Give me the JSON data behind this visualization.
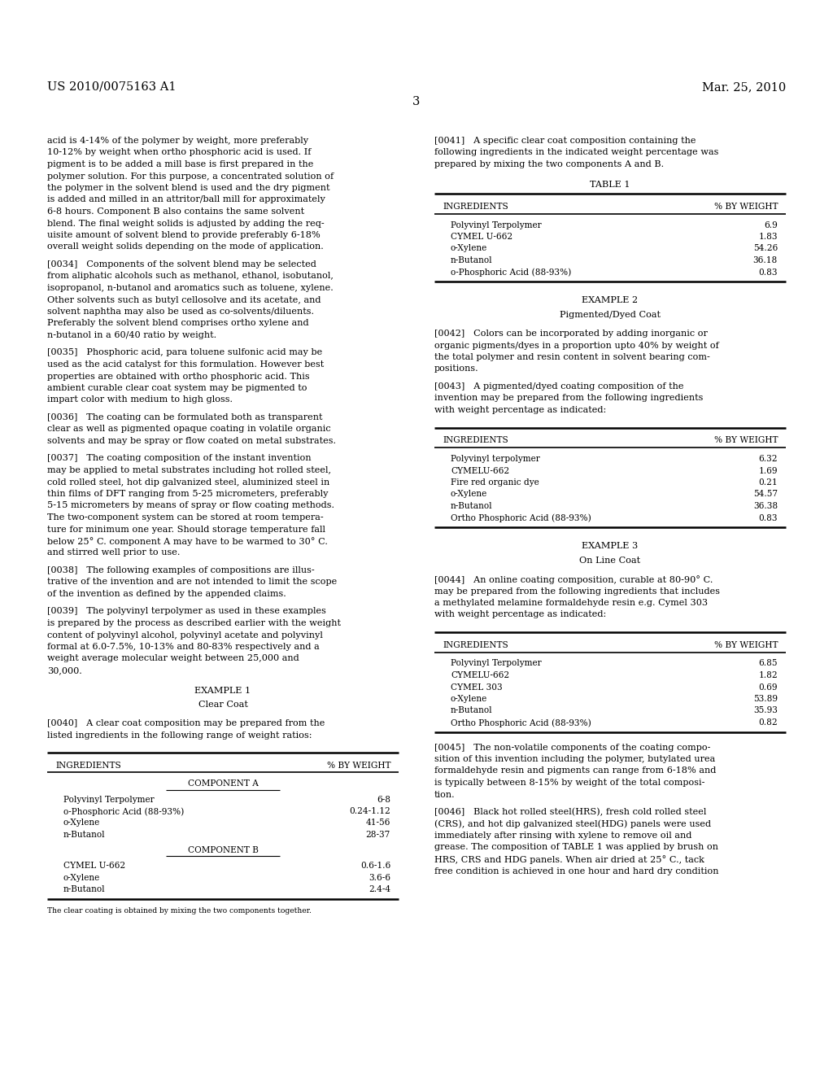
{
  "bg_color": "#ffffff",
  "header_left": "US 2010/0075163 A1",
  "header_right": "Mar. 25, 2010",
  "page_number": "3",
  "table1": {
    "rows": [
      [
        "Polyvinyl Terpolymer",
        "6.9"
      ],
      [
        "CYMEL U-662",
        "1.83"
      ],
      [
        "o-Xylene",
        "54.26"
      ],
      [
        "n-Butanol",
        "36.18"
      ],
      [
        "o-Phosphoric Acid (88-93%)",
        "0.83"
      ]
    ]
  },
  "table2": {
    "rows": [
      [
        "Polyvinyl terpolymer",
        "6.32"
      ],
      [
        "CYMELU-662",
        "1.69"
      ],
      [
        "Fire red organic dye",
        "0.21"
      ],
      [
        "o-Xylene",
        "54.57"
      ],
      [
        "n-Butanol",
        "36.38"
      ],
      [
        "Ortho Phosphoric Acid (88-93%)",
        "0.83"
      ]
    ]
  },
  "table3": {
    "rows": [
      [
        "Polyvinyl Terpolymer",
        "6.85"
      ],
      [
        "CYMELU-662",
        "1.82"
      ],
      [
        "CYMEL 303",
        "0.69"
      ],
      [
        "o-Xylene",
        "53.89"
      ],
      [
        "n-Butanol",
        "35.93"
      ],
      [
        "Ortho Phosphoric Acid (88-93%)",
        "0.82"
      ]
    ]
  },
  "table_clearcoat": {
    "rows_a": [
      [
        "Polyvinyl Terpolymer",
        "6-8"
      ],
      [
        "o-Phosphoric Acid (88-93%)",
        "0.24-1.12"
      ],
      [
        "o-Xylene",
        "41-56"
      ],
      [
        "n-Butanol",
        "28-37"
      ]
    ],
    "rows_b": [
      [
        "CYMEL U-662",
        "0.6-1.6"
      ],
      [
        "o-Xylene",
        "3.6-6"
      ],
      [
        "n-Butanol",
        "2.4-4"
      ]
    ],
    "footnote": "The clear coating is obtained by mixing the two components together."
  },
  "left_blocks": [
    "acid is 4-14% of the polymer by weight, more preferably\n10-12% by weight when ortho phosphoric acid is used. If\npigment is to be added a mill base is first prepared in the\npolymer solution. For this purpose, a concentrated solution of\nthe polymer in the solvent blend is used and the dry pigment\nis added and milled in an attritor/ball mill for approximately\n6-8 hours. Component B also contains the same solvent\nblend. The final weight solids is adjusted by adding the req-\nuisite amount of solvent blend to provide preferably 6-18%\noverall weight solids depending on the mode of application.",
    "[0034]   Components of the solvent blend may be selected\nfrom aliphatic alcohols such as methanol, ethanol, isobutanol,\nisopropanol, n-butanol and aromatics such as toluene, xylene.\nOther solvents such as butyl cellosolve and its acetate, and\nsolvent naphtha may also be used as co-solvents/diluents.\nPreferably the solvent blend comprises ortho xylene and\nn-butanol in a 60/40 ratio by weight.",
    "[0035]   Phosphoric acid, para toluene sulfonic acid may be\nused as the acid catalyst for this formulation. However best\nproperties are obtained with ortho phosphoric acid. This\nambient curable clear coat system may be pigmented to\nimpart color with medium to high gloss.",
    "[0036]   The coating can be formulated both as transparent\nclear as well as pigmented opaque coating in volatile organic\nsolvents and may be spray or flow coated on metal substrates.",
    "[0037]   The coating composition of the instant invention\nmay be applied to metal substrates including hot rolled steel,\ncold rolled steel, hot dip galvanized steel, aluminized steel in\nthin films of DFT ranging from 5-25 micrometers, preferably\n5-15 micrometers by means of spray or flow coating methods.\nThe two-component system can be stored at room tempera-\nture for minimum one year. Should storage temperature fall\nbelow 25° C. component A may have to be warmed to 30° C.\nand stirred well prior to use.",
    "[0038]   The following examples of compositions are illus-\ntrative of the invention and are not intended to limit the scope\nof the invention as defined by the appended claims.",
    "[0039]   The polyvinyl terpolymer as used in these examples\nis prepared by the process as described earlier with the weight\ncontent of polyvinyl alcohol, polyvinyl acetate and polyvinyl\nformal at 6.0-7.5%, 10-13% and 80-83% respectively and a\nweight average molecular weight between 25,000 and\n30,000."
  ],
  "right_blocks_top": [
    "[0041]   A specific clear coat composition containing the\nfollowing ingredients in the indicated weight percentage was\nprepared by mixing the two components A and B."
  ]
}
